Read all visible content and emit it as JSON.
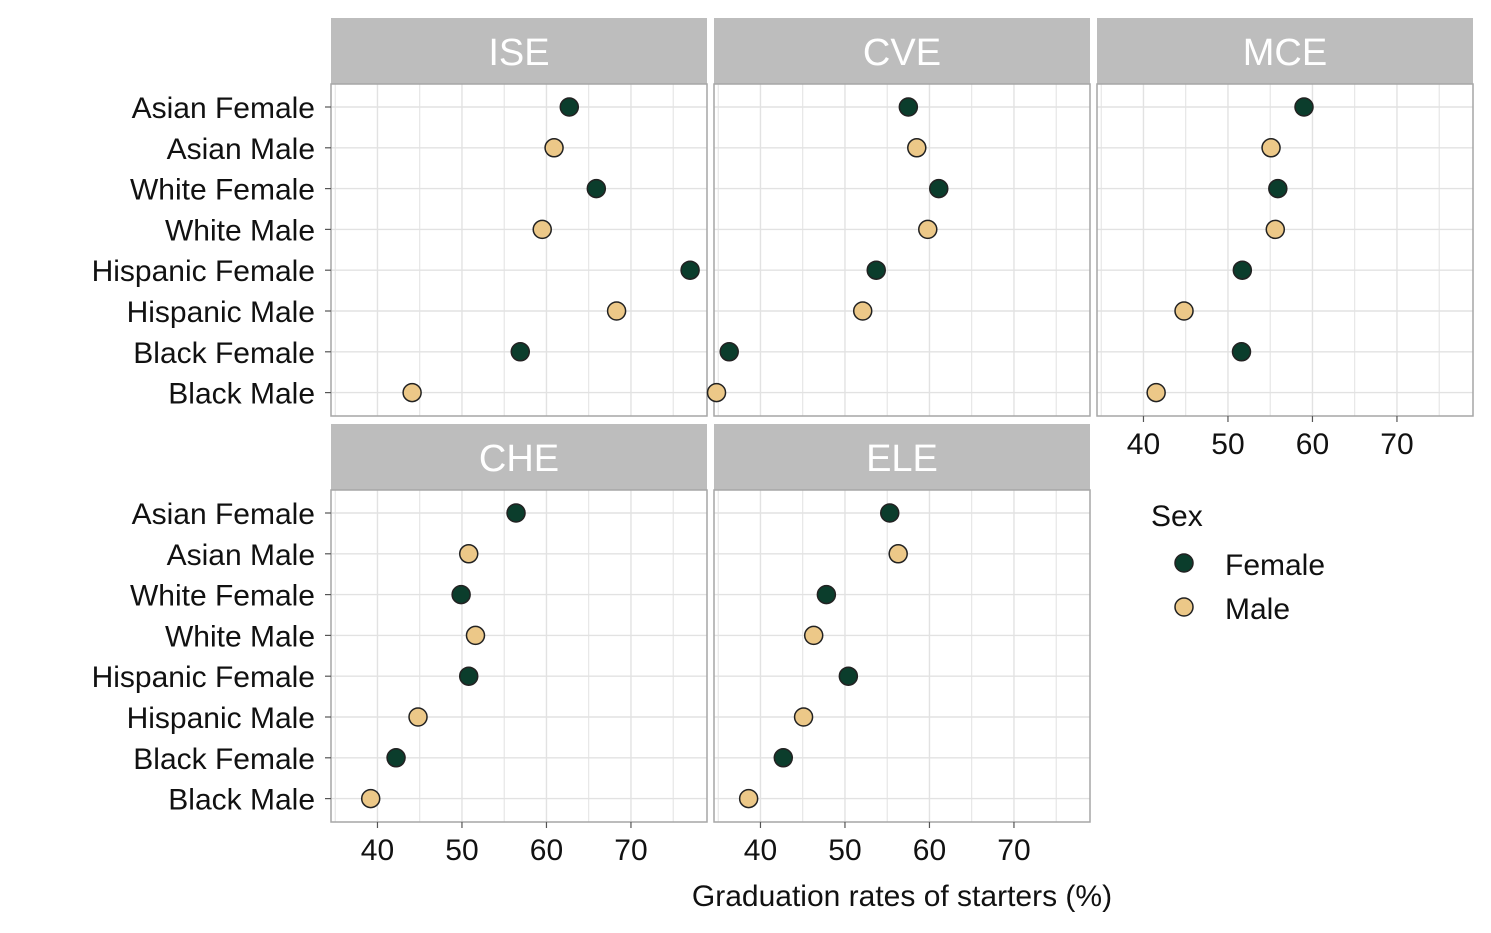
{
  "chart_data": {
    "type": "scatter",
    "subtype": "faceted-dot-plot",
    "xlabel": "Graduation rates of starters (%)",
    "xticks": [
      40,
      50,
      60,
      70
    ],
    "xlim": [
      34.5,
      79
    ],
    "grid": true,
    "categories": [
      "Asian Female",
      "Asian Male",
      "White Female",
      "White Male",
      "Hispanic Female",
      "Hispanic Male",
      "Black Female",
      "Black Male"
    ],
    "legend": {
      "title": "Sex",
      "position": "right",
      "entries": [
        {
          "name": "Female",
          "color": "#0b3d2c"
        },
        {
          "name": "Male",
          "color": "#ecc888"
        }
      ]
    },
    "facets": [
      {
        "name": "ISE",
        "sex": [
          "Female",
          "Male",
          "Female",
          "Male",
          "Female",
          "Male",
          "Female",
          "Male"
        ],
        "values": [
          62.7,
          60.9,
          65.9,
          59.5,
          77.0,
          68.3,
          56.9,
          44.1
        ]
      },
      {
        "name": "CVE",
        "sex": [
          "Female",
          "Male",
          "Female",
          "Male",
          "Female",
          "Male",
          "Female",
          "Male"
        ],
        "values": [
          57.5,
          58.5,
          61.1,
          59.8,
          53.7,
          52.1,
          36.3,
          34.8
        ]
      },
      {
        "name": "MCE",
        "sex": [
          "Female",
          "Male",
          "Female",
          "Male",
          "Female",
          "Male",
          "Female",
          "Male"
        ],
        "values": [
          59.0,
          55.1,
          55.9,
          55.6,
          51.7,
          44.8,
          51.6,
          41.5
        ]
      },
      {
        "name": "CHE",
        "sex": [
          "Female",
          "Male",
          "Female",
          "Male",
          "Female",
          "Male",
          "Female",
          "Male"
        ],
        "values": [
          56.4,
          50.8,
          49.9,
          51.6,
          50.8,
          44.8,
          42.2,
          39.2
        ]
      },
      {
        "name": "ELE",
        "sex": [
          "Female",
          "Male",
          "Female",
          "Male",
          "Female",
          "Male",
          "Female",
          "Male"
        ],
        "values": [
          55.3,
          56.3,
          47.8,
          46.3,
          50.4,
          45.1,
          42.7,
          38.6
        ]
      }
    ]
  }
}
